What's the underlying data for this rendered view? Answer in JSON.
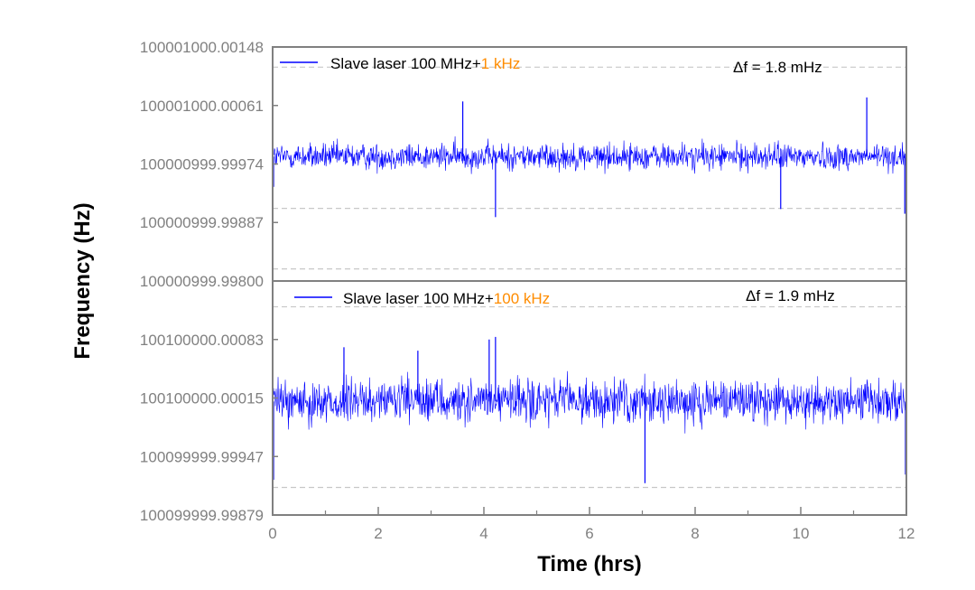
{
  "colors": {
    "series": "#0000ff",
    "highlight": "#ff8c00",
    "axis": "#808080",
    "refline": "#c8c8c8"
  },
  "chart_data": {
    "type": "line",
    "xlabel": "Time (hrs)",
    "ylabel": "Frequency (Hz)",
    "xlim": [
      0,
      12
    ],
    "xticks": [
      "0",
      "2",
      "4",
      "6",
      "8",
      "10",
      "12"
    ],
    "panels": [
      {
        "ylim": [
          100000999.998,
          100001000.00148
        ],
        "yticks": [
          {
            "value": 100000999.998,
            "label": "100000999.99800"
          },
          {
            "value": 100000999.99887,
            "label": "100000999.99887"
          },
          {
            "value": 100000999.99974,
            "label": "100000999.99974"
          },
          {
            "value": 100001000.00061,
            "label": "100001000.00061"
          },
          {
            "value": 100001000.00148,
            "label": "100001000.00148"
          }
        ],
        "reference_lines": [
          100000999.99818,
          100000999.99908,
          100001000.00118
        ],
        "series_name_prefix": "Slave laser  100 MHz+",
        "series_name_highlight": "1 kHz",
        "annotation": "Δf = 1.8 mHz",
        "center": 100000999.99985,
        "noise_halfwidth": 0.00025,
        "spikes": [
          {
            "x": 4.22,
            "y": 100000999.99895
          },
          {
            "x": 9.62,
            "y": 100000999.99907
          },
          {
            "x": 11.97,
            "y": 100000999.999
          },
          {
            "x": 0.0,
            "y": 100000999.9994
          },
          {
            "x": 11.25,
            "y": 100001000.00073
          },
          {
            "x": 3.6,
            "y": 100001000.00067
          }
        ]
      },
      {
        "ylim": [
          100099999.99879,
          100100000.00151
        ],
        "yticks": [
          {
            "value": 100099999.99879,
            "label": "100099999.99879"
          },
          {
            "value": 100099999.99947,
            "label": "100099999.99947"
          },
          {
            "value": 100100000.00015,
            "label": "100100000.00015"
          },
          {
            "value": 100100000.00083,
            "label": "100100000.00083"
          }
        ],
        "reference_lines": [
          100099999.99911,
          100100000.00121
        ],
        "series_name_prefix": "Slave laser  100 MHz+",
        "series_name_highlight": "100 kHz",
        "annotation": "Δf = 1.9 mHz",
        "center": 100100000.00011,
        "noise_halfwidth": 0.00032,
        "spikes": [
          {
            "x": 4.22,
            "y": 100100000.00086
          },
          {
            "x": 4.1,
            "y": 100100000.00083
          },
          {
            "x": 7.05,
            "y": 100099999.99916
          },
          {
            "x": 0.0,
            "y": 100099999.9992
          },
          {
            "x": 12.0,
            "y": 100099999.99926
          },
          {
            "x": 1.35,
            "y": 100100000.00074
          },
          {
            "x": 2.75,
            "y": 100100000.0007
          }
        ]
      }
    ]
  }
}
